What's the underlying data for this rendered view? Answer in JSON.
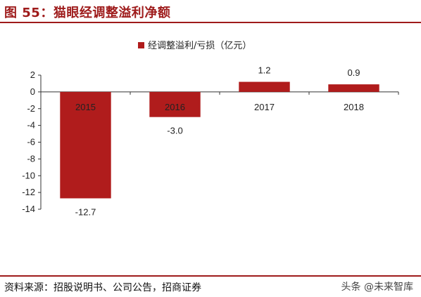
{
  "header": {
    "title": "图 55：猫眼经调整溢利净额"
  },
  "footer": {
    "source": "资料来源：招股说明书、公司公告，招商证券",
    "watermark": "头条 @未来智库"
  },
  "colors": {
    "bar": "#b01c1c",
    "accent": "#9e1b1b"
  },
  "chart_data": {
    "type": "bar",
    "title": "",
    "xlabel": "",
    "ylabel": "",
    "categories": [
      "2015",
      "2016",
      "2017",
      "2018"
    ],
    "series": [
      {
        "name": "经调整溢利/亏损（亿元）",
        "values": [
          -12.7,
          -3.0,
          1.2,
          0.9
        ]
      }
    ],
    "data_labels": [
      "-12.7",
      "-3.0",
      "1.2",
      "0.9"
    ],
    "ylim": [
      -14,
      2
    ],
    "yticks": [
      2,
      0,
      -2,
      -4,
      -6,
      -8,
      -10,
      -12,
      -14
    ],
    "grid": false,
    "legend_position": "top-center"
  }
}
